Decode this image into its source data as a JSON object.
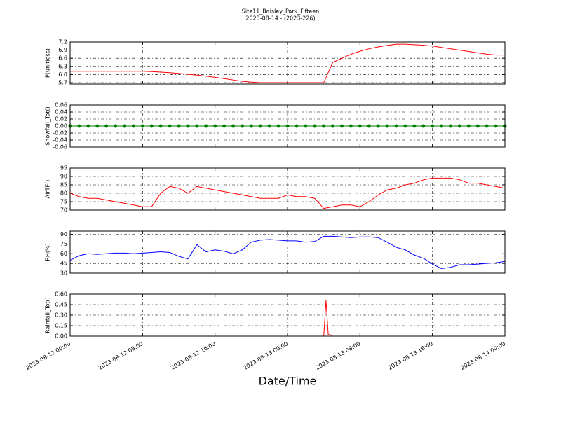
{
  "chart_data": [
    {
      "type": "line",
      "title": "Site11_Baisley_Park_Fifteen",
      "subtitle": "2023-08-14 - (2023-226)",
      "ylabel": "P(unitless)",
      "x": [
        "2023-08-12 00:00",
        "2023-08-12 01:00",
        "2023-08-12 02:00",
        "2023-08-12 03:00",
        "2023-08-12 04:00",
        "2023-08-12 05:00",
        "2023-08-12 06:00",
        "2023-08-12 07:00",
        "2023-08-12 08:00",
        "2023-08-12 09:00",
        "2023-08-12 10:00",
        "2023-08-12 11:00",
        "2023-08-12 12:00",
        "2023-08-12 13:00",
        "2023-08-12 14:00",
        "2023-08-12 15:00",
        "2023-08-12 16:00",
        "2023-08-12 17:00",
        "2023-08-12 18:00",
        "2023-08-12 19:00",
        "2023-08-12 20:00",
        "2023-08-12 21:00",
        "2023-08-12 22:00",
        "2023-08-12 23:00",
        "2023-08-13 00:00",
        "2023-08-13 01:00",
        "2023-08-13 02:00",
        "2023-08-13 03:00",
        "2023-08-13 04:00",
        "2023-08-13 05:00",
        "2023-08-13 06:00",
        "2023-08-13 07:00",
        "2023-08-13 08:00",
        "2023-08-13 09:00",
        "2023-08-13 10:00",
        "2023-08-13 11:00",
        "2023-08-13 12:00",
        "2023-08-13 13:00",
        "2023-08-13 14:00",
        "2023-08-13 15:00",
        "2023-08-13 16:00",
        "2023-08-13 17:00",
        "2023-08-13 18:00",
        "2023-08-13 19:00",
        "2023-08-13 20:00",
        "2023-08-13 21:00",
        "2023-08-13 22:00",
        "2023-08-13 23:00",
        "2023-08-14 00:00"
      ],
      "values": [
        6.12,
        6.12,
        6.12,
        6.12,
        6.12,
        6.12,
        6.12,
        6.12,
        6.12,
        6.11,
        6.09,
        6.07,
        6.04,
        6.01,
        5.98,
        5.94,
        5.9,
        5.85,
        5.8,
        5.75,
        5.72,
        5.7,
        5.7,
        5.7,
        5.7,
        5.7,
        5.7,
        5.7,
        5.7,
        6.45,
        6.6,
        6.75,
        6.86,
        6.95,
        7.02,
        7.07,
        7.12,
        7.12,
        7.1,
        7.08,
        7.05,
        7.0,
        6.95,
        6.9,
        6.85,
        6.8,
        6.75,
        6.72,
        6.72
      ],
      "color": "#ff0000",
      "xlim": [
        "2023-08-12 00:00",
        "2023-08-14 00:00"
      ],
      "ylim": [
        5.65,
        7.2
      ],
      "yticks": [
        5.7,
        {
          "value": 6,
          "label": "6.0"
        },
        6.3,
        6.6,
        6.9,
        7.2
      ],
      "grid": true
    },
    {
      "type": "line",
      "ylabel": "Snowfall_Tot()",
      "x": [
        "2023-08-12 00:00",
        "2023-08-12 01:00",
        "2023-08-12 02:00",
        "2023-08-12 03:00",
        "2023-08-12 04:00",
        "2023-08-12 05:00",
        "2023-08-12 06:00",
        "2023-08-12 07:00",
        "2023-08-12 08:00",
        "2023-08-12 09:00",
        "2023-08-12 10:00",
        "2023-08-12 11:00",
        "2023-08-12 12:00",
        "2023-08-12 13:00",
        "2023-08-12 14:00",
        "2023-08-12 15:00",
        "2023-08-12 16:00",
        "2023-08-12 17:00",
        "2023-08-12 18:00",
        "2023-08-12 19:00",
        "2023-08-12 20:00",
        "2023-08-12 21:00",
        "2023-08-12 22:00",
        "2023-08-12 23:00",
        "2023-08-13 00:00",
        "2023-08-13 01:00",
        "2023-08-13 02:00",
        "2023-08-13 03:00",
        "2023-08-13 04:00",
        "2023-08-13 05:00",
        "2023-08-13 06:00",
        "2023-08-13 07:00",
        "2023-08-13 08:00",
        "2023-08-13 09:00",
        "2023-08-13 10:00",
        "2023-08-13 11:00",
        "2023-08-13 12:00",
        "2023-08-13 13:00",
        "2023-08-13 14:00",
        "2023-08-13 15:00",
        "2023-08-13 16:00",
        "2023-08-13 17:00",
        "2023-08-13 18:00",
        "2023-08-13 19:00",
        "2023-08-13 20:00",
        "2023-08-13 21:00",
        "2023-08-13 22:00",
        "2023-08-13 23:00",
        "2023-08-14 00:00"
      ],
      "values": [
        0,
        0,
        0,
        0,
        0,
        0,
        0,
        0,
        0,
        0,
        0,
        0,
        0,
        0,
        0,
        0,
        0,
        0,
        0,
        0,
        0,
        0,
        0,
        0,
        0,
        0,
        0,
        0,
        0,
        0,
        0,
        0,
        0,
        0,
        0,
        0,
        0,
        0,
        0,
        0,
        0,
        0,
        0,
        0,
        0,
        0,
        0,
        0,
        0
      ],
      "color": "#008000",
      "markers": true,
      "xlim": [
        "2023-08-12 00:00",
        "2023-08-14 00:00"
      ],
      "ylim": [
        -0.06,
        0.06
      ],
      "yticks": [
        -0.06,
        -0.04,
        -0.02,
        {
          "value": 0,
          "label": "0.00"
        },
        0.02,
        0.04,
        0.06
      ],
      "grid": true
    },
    {
      "type": "line",
      "ylabel": "AirTF()",
      "x": [
        "2023-08-12 00:00",
        "2023-08-12 01:00",
        "2023-08-12 02:00",
        "2023-08-12 03:00",
        "2023-08-12 04:00",
        "2023-08-12 05:00",
        "2023-08-12 06:00",
        "2023-08-12 07:00",
        "2023-08-12 08:00",
        "2023-08-12 09:00",
        "2023-08-12 10:00",
        "2023-08-12 11:00",
        "2023-08-12 12:00",
        "2023-08-12 13:00",
        "2023-08-12 14:00",
        "2023-08-12 15:00",
        "2023-08-12 16:00",
        "2023-08-12 17:00",
        "2023-08-12 18:00",
        "2023-08-12 19:00",
        "2023-08-12 20:00",
        "2023-08-12 21:00",
        "2023-08-12 22:00",
        "2023-08-12 23:00",
        "2023-08-13 00:00",
        "2023-08-13 01:00",
        "2023-08-13 02:00",
        "2023-08-13 03:00",
        "2023-08-13 04:00",
        "2023-08-13 05:00",
        "2023-08-13 06:00",
        "2023-08-13 07:00",
        "2023-08-13 08:00",
        "2023-08-13 09:00",
        "2023-08-13 10:00",
        "2023-08-13 11:00",
        "2023-08-13 12:00",
        "2023-08-13 13:00",
        "2023-08-13 14:00",
        "2023-08-13 15:00",
        "2023-08-13 16:00",
        "2023-08-13 17:00",
        "2023-08-13 18:00",
        "2023-08-13 19:00",
        "2023-08-13 20:00",
        "2023-08-13 21:00",
        "2023-08-13 22:00",
        "2023-08-13 23:00",
        "2023-08-14 00:00"
      ],
      "values": [
        80,
        78,
        77,
        77,
        76,
        75,
        74,
        73,
        72,
        72,
        80,
        84,
        83,
        80,
        84,
        83,
        82,
        81,
        80,
        79,
        78,
        77,
        77,
        77,
        79,
        78,
        78,
        77,
        71,
        72,
        73,
        73,
        72,
        75,
        79,
        82,
        83,
        85,
        86,
        88,
        89,
        89,
        89,
        88,
        86,
        86,
        85,
        84,
        83
      ],
      "color": "#ff0000",
      "xlim": [
        "2023-08-12 00:00",
        "2023-08-14 00:00"
      ],
      "ylim": [
        70,
        95
      ],
      "yticks": [
        70,
        75,
        80,
        85,
        90,
        95
      ],
      "grid": true
    },
    {
      "type": "line",
      "ylabel": "RH(%)",
      "x": [
        "2023-08-12 00:00",
        "2023-08-12 01:00",
        "2023-08-12 02:00",
        "2023-08-12 03:00",
        "2023-08-12 04:00",
        "2023-08-12 05:00",
        "2023-08-12 06:00",
        "2023-08-12 07:00",
        "2023-08-12 08:00",
        "2023-08-12 09:00",
        "2023-08-12 10:00",
        "2023-08-12 11:00",
        "2023-08-12 12:00",
        "2023-08-12 13:00",
        "2023-08-12 14:00",
        "2023-08-12 15:00",
        "2023-08-12 16:00",
        "2023-08-12 17:00",
        "2023-08-12 18:00",
        "2023-08-12 19:00",
        "2023-08-12 20:00",
        "2023-08-12 21:00",
        "2023-08-12 22:00",
        "2023-08-12 23:00",
        "2023-08-13 00:00",
        "2023-08-13 01:00",
        "2023-08-13 02:00",
        "2023-08-13 03:00",
        "2023-08-13 04:00",
        "2023-08-13 05:00",
        "2023-08-13 06:00",
        "2023-08-13 07:00",
        "2023-08-13 08:00",
        "2023-08-13 09:00",
        "2023-08-13 10:00",
        "2023-08-13 11:00",
        "2023-08-13 12:00",
        "2023-08-13 13:00",
        "2023-08-13 14:00",
        "2023-08-13 15:00",
        "2023-08-13 16:00",
        "2023-08-13 17:00",
        "2023-08-13 18:00",
        "2023-08-13 19:00",
        "2023-08-13 20:00",
        "2023-08-13 21:00",
        "2023-08-13 22:00",
        "2023-08-13 23:00",
        "2023-08-14 00:00"
      ],
      "values": [
        50,
        57,
        60,
        59,
        60,
        61,
        61,
        60,
        61,
        62,
        63,
        62,
        56,
        52,
        74,
        63,
        66,
        64,
        60,
        66,
        78,
        81,
        82,
        81,
        80,
        80,
        78,
        79,
        87,
        87,
        86,
        85,
        86,
        86,
        85,
        78,
        70,
        66,
        58,
        53,
        44,
        37,
        39,
        43,
        43,
        44,
        45,
        46,
        48
      ],
      "color": "#0000ff",
      "xlim": [
        "2023-08-12 00:00",
        "2023-08-14 00:00"
      ],
      "ylim": [
        30,
        95
      ],
      "yticks": [
        30,
        45,
        60,
        75,
        90
      ],
      "grid": true
    },
    {
      "type": "line",
      "ylabel": "Rainfall_Tot()",
      "xlabel": "Date/Time",
      "x": [
        "2023-08-12 00:00",
        "2023-08-13 04:00",
        "2023-08-13 04:15",
        "2023-08-13 04:30",
        "2023-08-13 04:45",
        "2023-08-13 05:00",
        "2023-08-14 00:00"
      ],
      "values": [
        0,
        0,
        0.51,
        0.02,
        0.02,
        0,
        0
      ],
      "color": "#ff0000",
      "xlim": [
        "2023-08-12 00:00",
        "2023-08-14 00:00"
      ],
      "ylim": [
        0,
        0.6
      ],
      "yticks": [
        {
          "value": 0,
          "label": "0.00"
        },
        0.15,
        {
          "value": 0.3,
          "label": "0.30"
        },
        0.45,
        {
          "value": 0.6,
          "label": "0.60"
        }
      ],
      "xticks": [
        "2023-08-12 00:00",
        "2023-08-12 08:00",
        "2023-08-12 16:00",
        "2023-08-13 00:00",
        "2023-08-13 08:00",
        "2023-08-13 16:00",
        "2023-08-14 00:00"
      ],
      "grid": true
    }
  ]
}
